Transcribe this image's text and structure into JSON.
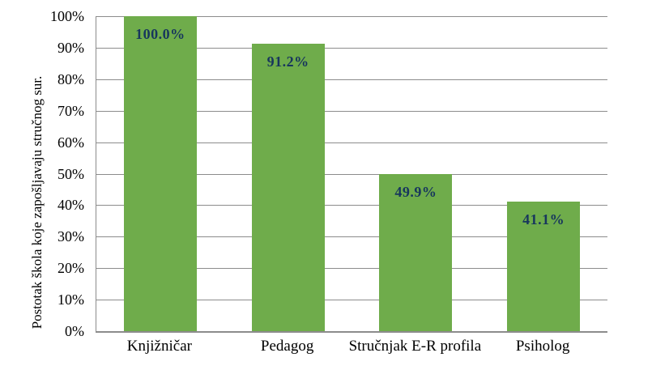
{
  "chart_data": {
    "type": "bar",
    "title": "",
    "xlabel": "",
    "ylabel": "Postotak škola koje zapošljavaju stručnog sur.",
    "categories": [
      "Knjižničar",
      "Pedagog",
      "Stručnjak E-R profila",
      "Psiholog"
    ],
    "values": [
      100.0,
      91.2,
      49.9,
      41.1
    ],
    "data_labels": [
      "100.0%",
      "91.2%",
      "49.9%",
      "41.1%"
    ],
    "ylim": [
      0,
      100
    ],
    "ytick_step": 10,
    "ytick_labels": [
      "0%",
      "10%",
      "20%",
      "30%",
      "40%",
      "50%",
      "60%",
      "70%",
      "80%",
      "90%",
      "100%"
    ],
    "grid": true,
    "legend": false,
    "colors": {
      "bar_fill": "#6FAC4B",
      "data_label": "#17365D",
      "gridline": "#8C8C8C",
      "axis_line": "#8C8C8C",
      "text": "#000000",
      "background": "#FFFFFF"
    }
  }
}
